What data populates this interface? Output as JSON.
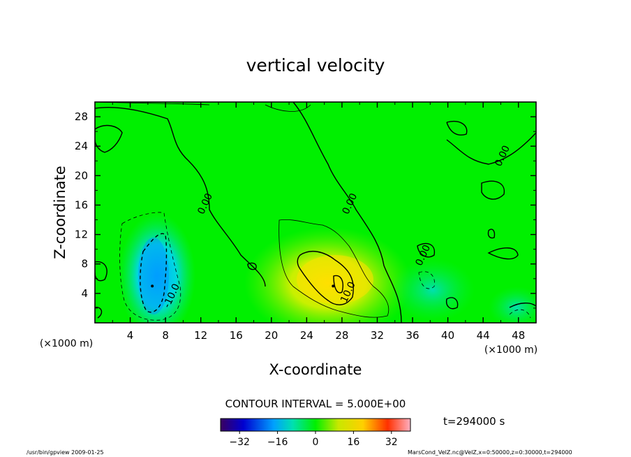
{
  "chart_data": {
    "type": "heatmap",
    "title": "vertical velocity",
    "xlabel": "X-coordinate",
    "ylabel": "Z-coordinate",
    "x_unit": "(×1000 m)",
    "y_unit": "(×1000 m)",
    "xlim": [
      0,
      50
    ],
    "ylim": [
      0,
      30
    ],
    "x_ticks": [
      4,
      8,
      12,
      16,
      20,
      24,
      28,
      32,
      36,
      40,
      44,
      48
    ],
    "y_ticks": [
      4,
      8,
      12,
      16,
      20,
      24,
      28
    ],
    "contour_interval_text": "CONTOUR INTERVAL = 5.000E+00",
    "time_text": "t=294000 s",
    "colorbar": {
      "range": [
        -40,
        40
      ],
      "ticks": [
        -32,
        -16,
        0,
        16,
        32
      ]
    },
    "features": [
      {
        "kind": "updraft",
        "x": 27,
        "z": 5,
        "peak": 16
      },
      {
        "kind": "downdraft",
        "x": 6.5,
        "z": 5,
        "peak": -19
      }
    ],
    "contour_labels": [
      {
        "text": "0.00",
        "x": 12.8,
        "z": 16
      },
      {
        "text": "0.00",
        "x": 29.2,
        "z": 16
      },
      {
        "text": "0.00",
        "x": 46.5,
        "z": 22.5
      },
      {
        "text": "0.00",
        "x": 37.5,
        "z": 9
      },
      {
        "text": "-10.0",
        "x": 9,
        "z": 3.5
      },
      {
        "text": "10.0",
        "x": 29,
        "z": 4
      }
    ]
  },
  "footer": {
    "left": "/usr/bin/gpview  2009-01-25",
    "right": "MarsCond_VelZ.nc@VelZ,x=0:50000,z=0:30000,t=294000"
  },
  "colors": {
    "background": "#00f000",
    "axis": "#000000"
  }
}
